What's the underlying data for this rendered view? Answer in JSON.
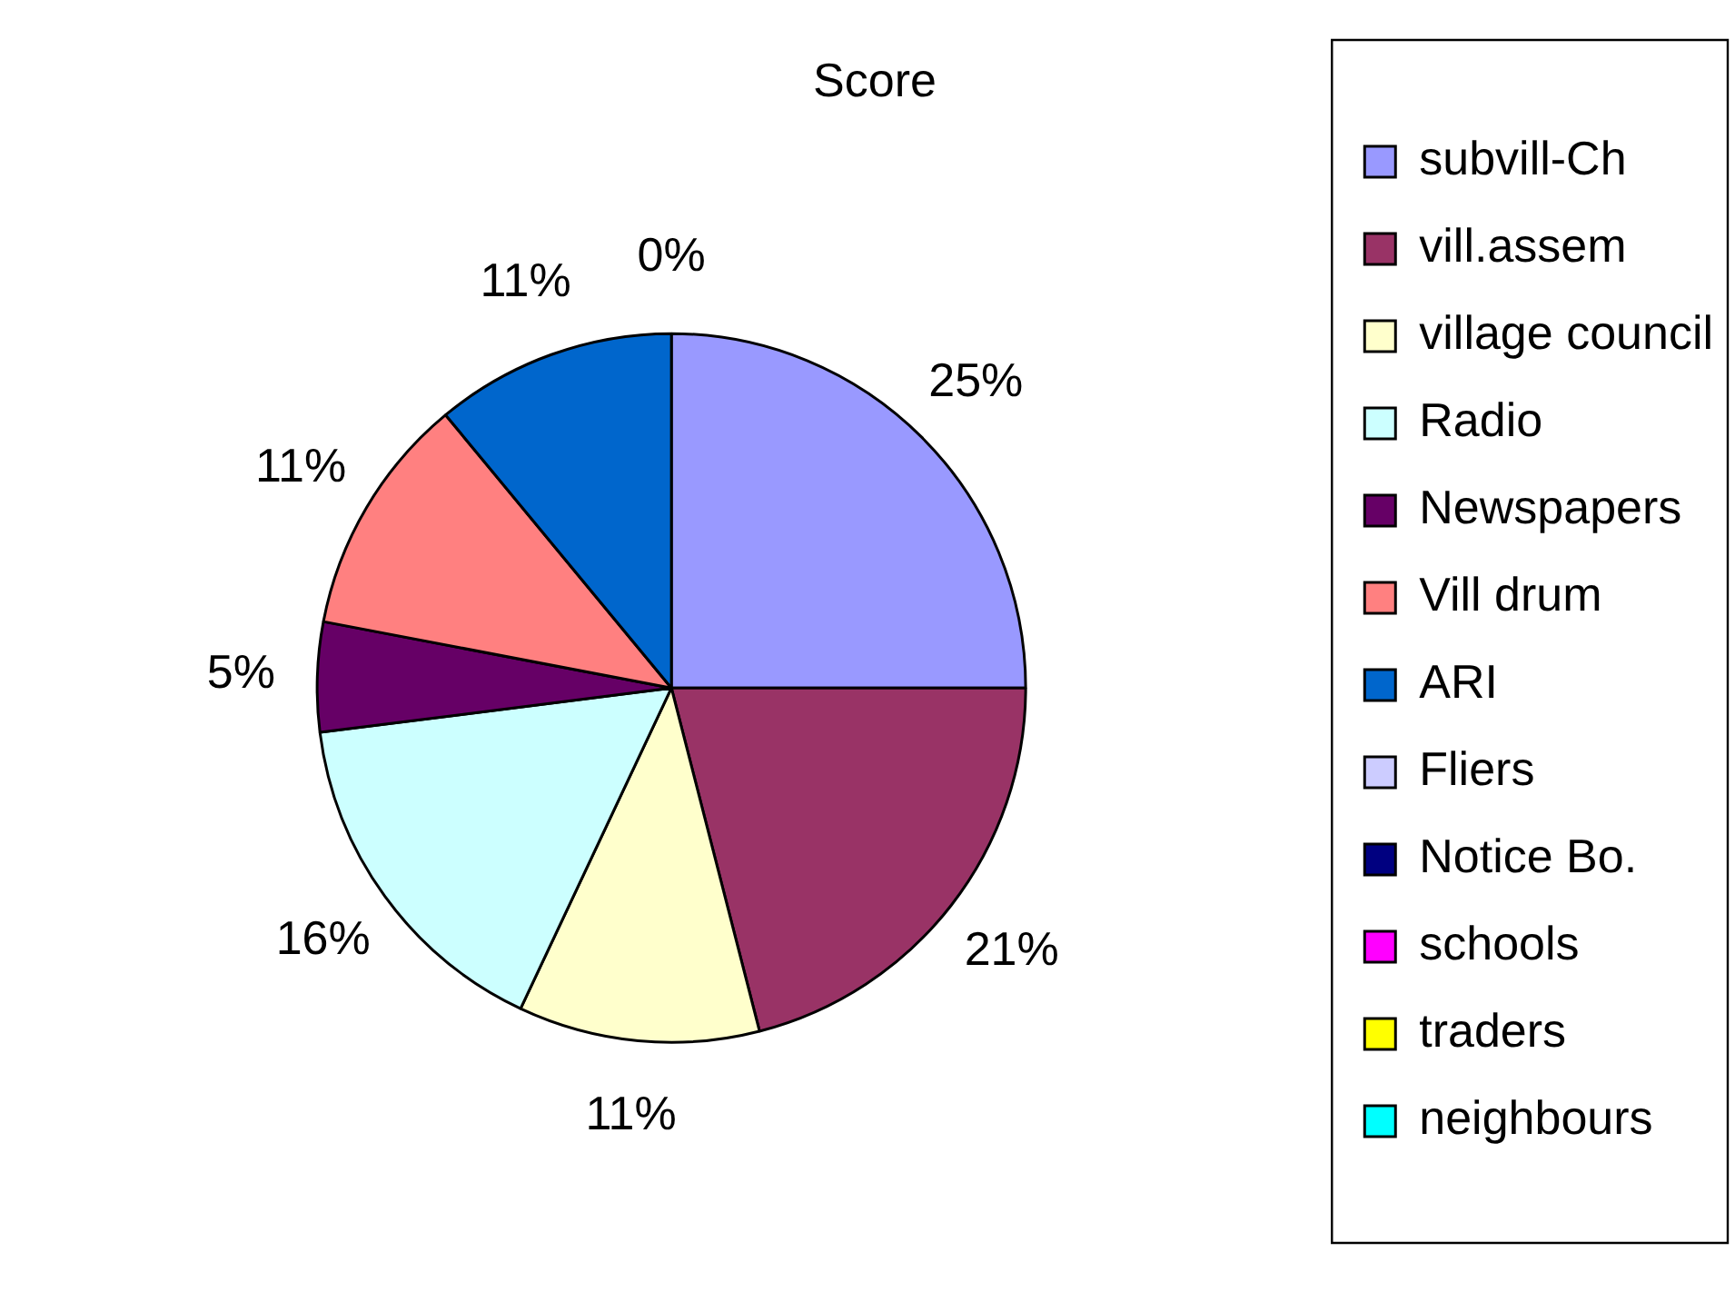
{
  "chart_data": {
    "type": "pie",
    "title": "Score",
    "categories": [
      "subvill-Ch",
      "vill.assem",
      "village council",
      "Radio",
      "Newspapers",
      "Vill drum",
      "ARI",
      "Fliers",
      "Notice Bo.",
      "schools",
      "traders",
      "neighbours"
    ],
    "values": [
      25,
      21,
      11,
      16,
      5,
      11,
      11,
      0,
      0,
      0,
      0,
      0
    ],
    "colors": [
      "#9999ff",
      "#993366",
      "#ffffcc",
      "#ccffff",
      "#660066",
      "#ff8080",
      "#0066cc",
      "#ccccff",
      "#000080",
      "#ff00ff",
      "#ffff00",
      "#00ffff"
    ],
    "value_labels": [
      "25%",
      "21%",
      "11%",
      "16%",
      "5%",
      "11%",
      "11%",
      "0%",
      null,
      null,
      null,
      null
    ],
    "legend": "right"
  }
}
